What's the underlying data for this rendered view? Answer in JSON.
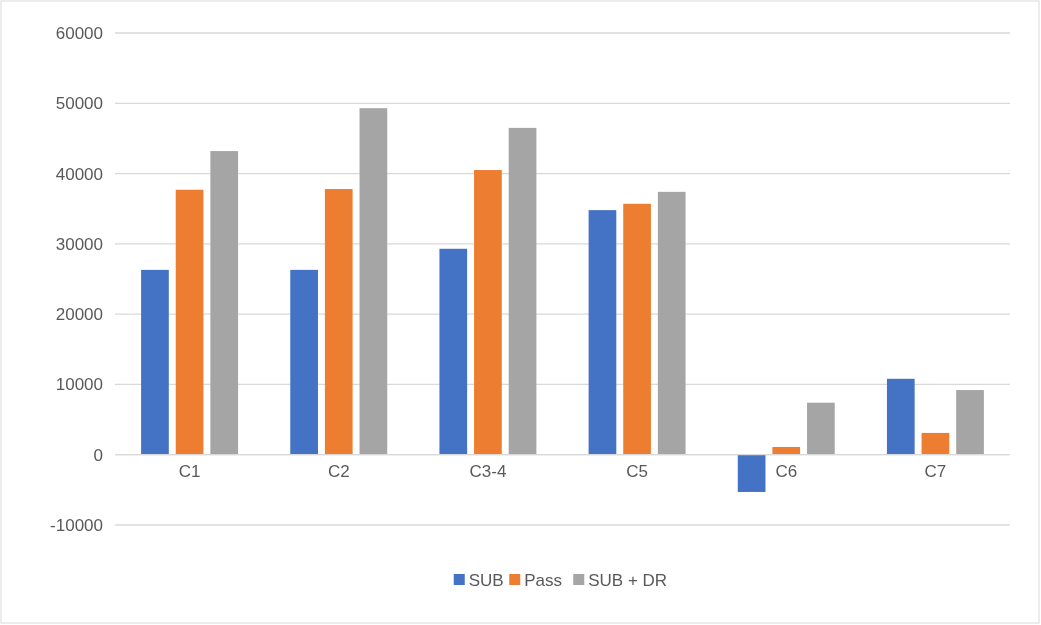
{
  "chart_data": {
    "type": "bar",
    "categories": [
      "C1",
      "C2",
      "C3-4",
      "C5",
      "C6",
      "C7"
    ],
    "series": [
      {
        "name": "SUB",
        "color": "#4472c4",
        "values": [
          26300,
          26300,
          29300,
          34800,
          -5300,
          10800
        ]
      },
      {
        "name": "Pass",
        "color": "#ed7d31",
        "values": [
          37700,
          37800,
          40500,
          35700,
          1100,
          3100
        ]
      },
      {
        "name": "SUB + DR",
        "color": "#a5a5a5",
        "values": [
          43200,
          49300,
          46500,
          37400,
          7400,
          9200
        ]
      }
    ],
    "ylim": [
      -10000,
      60000
    ],
    "yticks": [
      -10000,
      0,
      10000,
      20000,
      30000,
      40000,
      50000,
      60000
    ],
    "grid": "y",
    "legend": "bottom"
  }
}
